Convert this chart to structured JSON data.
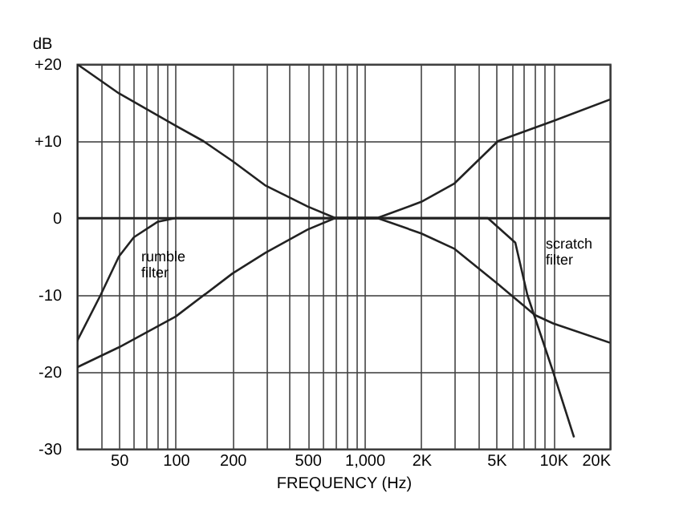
{
  "chart_data": {
    "type": "line",
    "xlabel": "FREQUENCY (Hz)",
    "ylabel": "dB",
    "log": "x",
    "grid": true,
    "xlim": [
      30,
      20000
    ],
    "ylim": [
      -30,
      20
    ],
    "xticks": [
      {
        "value": 40,
        "label": null
      },
      50,
      {
        "value": 60,
        "label": null
      },
      {
        "value": 70,
        "label": null
      },
      {
        "value": 80,
        "label": null
      },
      {
        "value": 90,
        "label": null
      },
      100,
      200,
      {
        "value": 300,
        "label": null
      },
      {
        "value": 400,
        "label": null
      },
      500,
      {
        "value": 600,
        "label": null
      },
      {
        "value": 700,
        "label": null
      },
      {
        "value": 800,
        "label": null
      },
      {
        "value": 900,
        "label": null
      },
      {
        "value": 1000,
        "label": "1,000"
      },
      {
        "value": 2000,
        "label": "2K"
      },
      {
        "value": 3000,
        "label": null
      },
      {
        "value": 4000,
        "label": null
      },
      {
        "value": 5000,
        "label": "5K"
      },
      {
        "value": 6000,
        "label": null
      },
      {
        "value": 7000,
        "label": null
      },
      {
        "value": 8000,
        "label": null
      },
      {
        "value": 9000,
        "label": null
      },
      {
        "value": 10000,
        "label": "10K"
      },
      {
        "value": 20000,
        "label": "20K"
      }
    ],
    "yticks": [
      -30,
      -20,
      -10,
      0,
      {
        "value": 10,
        "label": "+10"
      },
      {
        "value": 20,
        "label": "+20"
      }
    ],
    "series": [
      {
        "color": "#222222",
        "x": [
          30,
          50,
          100,
          140,
          200,
          300,
          500,
          700,
          1170
        ],
        "values": [
          20,
          16.2,
          12,
          10,
          7.4,
          4.2,
          1.5,
          0,
          0
        ]
      },
      {
        "color": "#222222",
        "x": [
          30,
          50,
          100,
          200,
          300,
          500,
          700,
          1170
        ],
        "values": [
          -19.4,
          -16.8,
          -12.8,
          -7.2,
          -4.5,
          -1.5,
          0,
          0
        ]
      },
      {
        "color": "#222222",
        "x": [
          700,
          1170,
          2000,
          3000,
          5100,
          10000,
          20000
        ],
        "values": [
          0,
          0,
          2.1,
          4.5,
          10,
          12.6,
          15.4
        ]
      },
      {
        "color": "#222222",
        "x": [
          700,
          1170,
          2000,
          3000,
          5000,
          8000,
          10000,
          20000
        ],
        "values": [
          0,
          0,
          -2,
          -4,
          -8.4,
          -12.6,
          -13.7,
          -16.2
        ]
      },
      {
        "color": "#222222",
        "x": [
          30,
          40,
          50,
          60,
          80,
          100,
          20000
        ],
        "values": [
          -16,
          -10,
          -5,
          -2.5,
          -0.5,
          0,
          0
        ]
      },
      {
        "color": "#222222",
        "x": [
          30,
          4500,
          6300,
          7300,
          10000,
          12900
        ],
        "values": [
          0,
          0,
          -3.2,
          -10,
          -20,
          -28.5
        ]
      }
    ],
    "annotations": [
      "rumble filter",
      "scratch filter"
    ]
  }
}
